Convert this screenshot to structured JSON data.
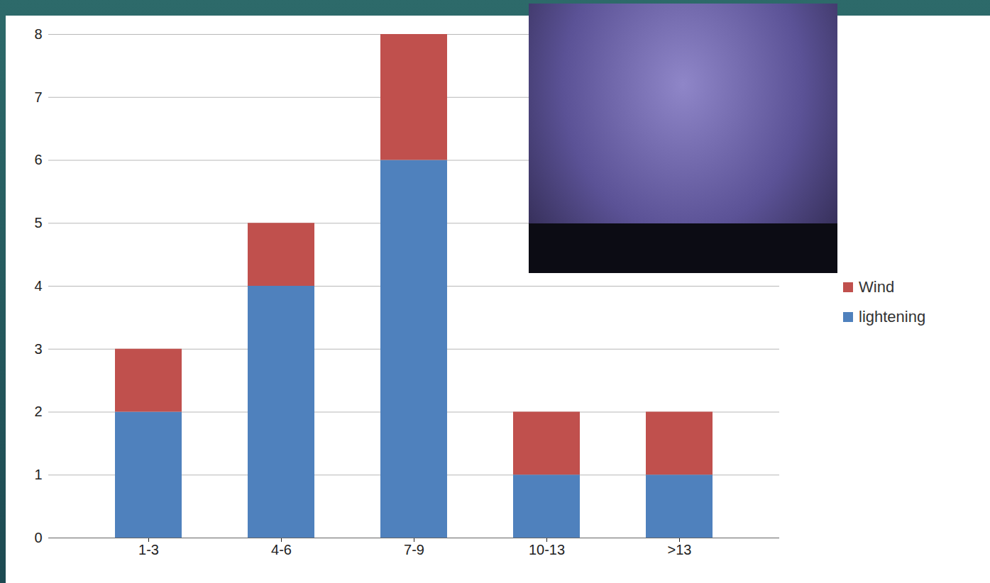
{
  "chart_data": {
    "type": "bar",
    "stacked": true,
    "categories": [
      "1-3",
      "4-6",
      "7-9",
      "10-13",
      ">13"
    ],
    "series": [
      {
        "name": "lightening",
        "color": "#4f81bd",
        "values": [
          2,
          4,
          6,
          1,
          1
        ]
      },
      {
        "name": "Wind",
        "color": "#c0504d",
        "values": [
          1,
          1,
          2,
          1,
          1
        ]
      }
    ],
    "ylim": [
      0,
      8
    ],
    "yticks": [
      0,
      1,
      2,
      3,
      4,
      5,
      6,
      7,
      8
    ],
    "grid": true,
    "legend": "right"
  }
}
